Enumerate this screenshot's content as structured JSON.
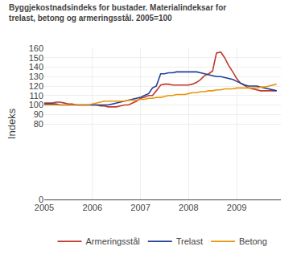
{
  "chart_data": {
    "type": "line",
    "title": "Byggjekostnadsindeks for bustader. Materialindeksar for\ntrelast, betong og armeringsstål. 2005=100",
    "ylabel": "Indeks",
    "ylim": [
      0,
      160
    ],
    "yticks": [
      0,
      80,
      90,
      100,
      110,
      120,
      130,
      140,
      150,
      160
    ],
    "xlim": [
      2005.0,
      2009.92
    ],
    "xticks": [
      2005,
      2006,
      2007,
      2008,
      2009
    ],
    "grid": true,
    "legend": "bottom",
    "x": [
      2005.0,
      2005.08,
      2005.17,
      2005.25,
      2005.33,
      2005.42,
      2005.5,
      2005.58,
      2005.67,
      2005.75,
      2005.83,
      2005.92,
      2006.0,
      2006.08,
      2006.17,
      2006.25,
      2006.33,
      2006.42,
      2006.5,
      2006.58,
      2006.67,
      2006.75,
      2006.83,
      2006.92,
      2007.0,
      2007.08,
      2007.17,
      2007.25,
      2007.33,
      2007.42,
      2007.5,
      2007.58,
      2007.67,
      2007.75,
      2007.83,
      2007.92,
      2008.0,
      2008.08,
      2008.17,
      2008.25,
      2008.33,
      2008.42,
      2008.5,
      2008.58,
      2008.67,
      2008.75,
      2008.83,
      2008.92,
      2009.0,
      2009.08,
      2009.17,
      2009.25,
      2009.33,
      2009.42,
      2009.5,
      2009.58,
      2009.67,
      2009.75,
      2009.83
    ],
    "series": [
      {
        "name": "Armeringsstål",
        "color": "#c0392b",
        "values": [
          102,
          102,
          102,
          103,
          103,
          102,
          101,
          101,
          100,
          100,
          100,
          100,
          100,
          100,
          99,
          99,
          98,
          98,
          98,
          99,
          100,
          100,
          102,
          104,
          107,
          108,
          110,
          110,
          115,
          121,
          122,
          122,
          121,
          121,
          121,
          121,
          121,
          122,
          124,
          127,
          131,
          133,
          136,
          155,
          156,
          150,
          142,
          135,
          128,
          123,
          120,
          118,
          117,
          116,
          115,
          115,
          115,
          115,
          115
        ]
      },
      {
        "name": "Trelast",
        "color": "#1f3d99",
        "values": [
          101,
          101,
          101,
          101,
          100,
          100,
          100,
          100,
          100,
          100,
          100,
          100,
          100,
          100,
          100,
          100,
          100,
          101,
          102,
          103,
          104,
          105,
          106,
          107,
          108,
          110,
          112,
          118,
          120,
          133,
          133,
          134,
          134,
          135,
          135,
          135,
          135,
          135,
          135,
          134,
          133,
          132,
          131,
          130,
          130,
          129,
          128,
          127,
          125,
          123,
          121,
          120,
          120,
          120,
          119,
          118,
          117,
          116,
          115
        ]
      },
      {
        "name": "Betong",
        "color": "#e8960a",
        "values": [
          100,
          100,
          100,
          100,
          100,
          100,
          100,
          100,
          100,
          100,
          100,
          100,
          101,
          102,
          103,
          104,
          104,
          104,
          104,
          104,
          104,
          105,
          105,
          105,
          106,
          106,
          107,
          107,
          108,
          108,
          109,
          110,
          110,
          111,
          111,
          111,
          112,
          113,
          113,
          114,
          114,
          115,
          115,
          116,
          116,
          117,
          117,
          117,
          118,
          118,
          118,
          118,
          118,
          118,
          119,
          119,
          120,
          121,
          122
        ]
      }
    ]
  }
}
